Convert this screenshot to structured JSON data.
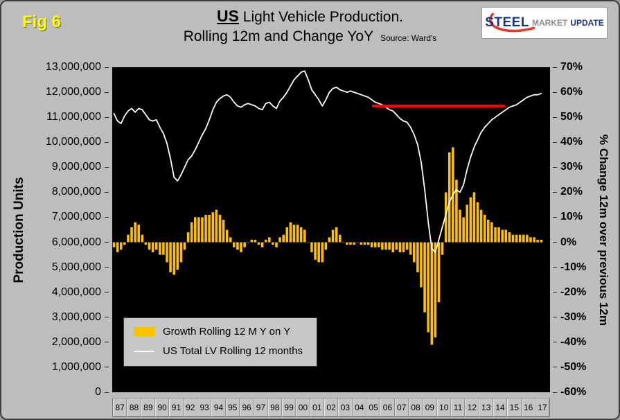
{
  "fig_label": "Fig 6",
  "header": {
    "title_emph": "US",
    "title_rest": " Light Vehicle Production.",
    "title_line2": "Rolling 12m and Change YoY",
    "source": "Source: Ward's"
  },
  "logo": {
    "word1": "STEEL",
    "word2": "MARKET",
    "word3": "UPDATE"
  },
  "left_axis": {
    "title": "Production Units",
    "ticks": [
      "13,000,000",
      "12,000,000",
      "11,000,000",
      "10,000,000",
      "9,000,000",
      "8,000,000",
      "7,000,000",
      "6,000,000",
      "5,000,000",
      "4,000,000",
      "3,000,000",
      "2,000,000",
      "1,000,000",
      "0"
    ]
  },
  "right_axis": {
    "title": "% Change 12m over previous 12m",
    "ticks": [
      "70%",
      "60%",
      "50%",
      "40%",
      "30%",
      "20%",
      "10%",
      "0%",
      "-10%",
      "-20%",
      "-30%",
      "-40%",
      "-50%",
      "-60%"
    ]
  },
  "x_axis": {
    "labels": [
      "87",
      "88",
      "89",
      "90",
      "91",
      "92",
      "93",
      "94",
      "95",
      "96",
      "97",
      "98",
      "99",
      "00",
      "01",
      "02",
      "03",
      "04",
      "05",
      "06",
      "07",
      "08",
      "09",
      "10",
      "11",
      "12",
      "13",
      "14",
      "15",
      "16",
      "17"
    ]
  },
  "legend": {
    "items": [
      {
        "label": "Growth Rolling 12 M Y on Y",
        "swatch": "bar",
        "color": "#FFC000"
      },
      {
        "label": "US Total LV Rolling 12 months",
        "swatch": "line",
        "color": "#FFFFFF"
      }
    ]
  },
  "colors": {
    "page_bg": "#BDBDBD",
    "plot_bg": "#000000",
    "bar": "#FFC000",
    "line": "#FFFFFF",
    "fig_label": "#FFFF00",
    "reference_line": "#FF0000",
    "logo_blue": "#16337F",
    "logo_gray": "#8C8C8C",
    "logo_red": "#E03C31"
  },
  "chart_data": {
    "type": "combo",
    "title": "US Light Vehicle Production. Rolling 12m and Change YoY",
    "x_start": 1987.125,
    "x_step": 0.25,
    "x_range": [
      1987,
      2018
    ],
    "left_ylim": [
      0,
      13000000
    ],
    "right_ylim": [
      -60,
      70
    ],
    "left_ylabel": "Production Units",
    "right_ylabel": "% Change 12m over previous 12m",
    "series": [
      {
        "name": "Growth Rolling 12 M Y on Y",
        "type": "bar",
        "axis": "right",
        "color": "#FFC000",
        "values": [
          -2,
          -4,
          -3,
          -1,
          3,
          6,
          8,
          7,
          3,
          -1,
          -3,
          -4,
          -3,
          -5,
          -5,
          -8,
          -12,
          -13,
          -11,
          -8,
          -3,
          4,
          8,
          10,
          10,
          10,
          11,
          11,
          12,
          13,
          11,
          9,
          5,
          2,
          -2,
          -3,
          -4,
          -2,
          0,
          1,
          1,
          -1,
          -2,
          1,
          2,
          -1,
          -2,
          2,
          3,
          6,
          8,
          7,
          7,
          6,
          5,
          0,
          -4,
          -7,
          -8,
          -8,
          -3,
          2,
          5,
          6,
          3,
          0,
          -1,
          -1,
          -1,
          0,
          -1,
          -1,
          -1,
          -2,
          -2,
          -2,
          -3,
          -3,
          -3,
          -4,
          -3,
          -4,
          -4,
          -3,
          -5,
          -8,
          -12,
          -18,
          -28,
          -36,
          -41,
          -38,
          -24,
          -5,
          20,
          36,
          38,
          25,
          13,
          10,
          15,
          18,
          20,
          16,
          13,
          11,
          9,
          8,
          6,
          6,
          5,
          5,
          4,
          3,
          3,
          3,
          3,
          3,
          2,
          2,
          1,
          1
        ]
      },
      {
        "name": "US Total LV Rolling 12 months",
        "type": "line",
        "axis": "left",
        "color": "#FFFFFF",
        "values": [
          11150000,
          10850000,
          10750000,
          11050000,
          11250000,
          11350000,
          11200000,
          11350000,
          11300000,
          11100000,
          10900000,
          10850000,
          10900000,
          10600000,
          10350000,
          9950000,
          9350000,
          8600000,
          8450000,
          8700000,
          9000000,
          9300000,
          9450000,
          9700000,
          10000000,
          10300000,
          10550000,
          10900000,
          11300000,
          11600000,
          11750000,
          11850000,
          11900000,
          11800000,
          11600000,
          11450000,
          11400000,
          11500000,
          11550000,
          11500000,
          11450000,
          11350000,
          11300000,
          11550000,
          11600000,
          11450000,
          11350000,
          11650000,
          11800000,
          12000000,
          12250000,
          12500000,
          12650000,
          12800000,
          12850000,
          12500000,
          12100000,
          11900000,
          11700000,
          11450000,
          11700000,
          12000000,
          12150000,
          12200000,
          12100000,
          12050000,
          12000000,
          12050000,
          12000000,
          11950000,
          11900000,
          11850000,
          11800000,
          11700000,
          11600000,
          11550000,
          11500000,
          11400000,
          11300000,
          11250000,
          11100000,
          10950000,
          10850000,
          10800000,
          10600000,
          10300000,
          9900000,
          9200000,
          8100000,
          6800000,
          5750000,
          5600000,
          6100000,
          6600000,
          7100000,
          7600000,
          7900000,
          8100000,
          8000000,
          8300000,
          8900000,
          9400000,
          9800000,
          10100000,
          10400000,
          10600000,
          10750000,
          10900000,
          11000000,
          11100000,
          11200000,
          11300000,
          11400000,
          11450000,
          11500000,
          11600000,
          11700000,
          11800000,
          11850000,
          11900000,
          11900000,
          11950000
        ]
      }
    ],
    "annotations": [
      {
        "type": "line-segment",
        "x1": 2005.4,
        "x2": 2014.8,
        "y": 11450000,
        "color": "#FF0000"
      }
    ]
  }
}
